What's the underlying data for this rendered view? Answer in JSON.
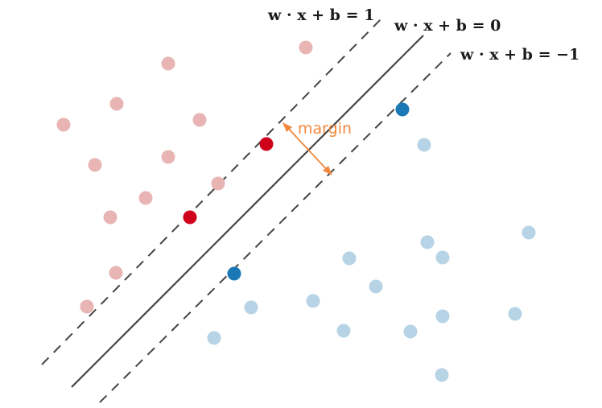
{
  "equations": {
    "positive": "w · x + b = 1",
    "center": "w · x + b = 0",
    "negative": "w · x + b = −1"
  },
  "margin_label": "margin",
  "colors": {
    "red_faded": "#e8b4b4",
    "red_support": "#d0021b",
    "blue_faded": "#b7d3e6",
    "blue_support": "#1a78b5",
    "line": "#444444",
    "margin_arrow": "#f0883e"
  }
}
